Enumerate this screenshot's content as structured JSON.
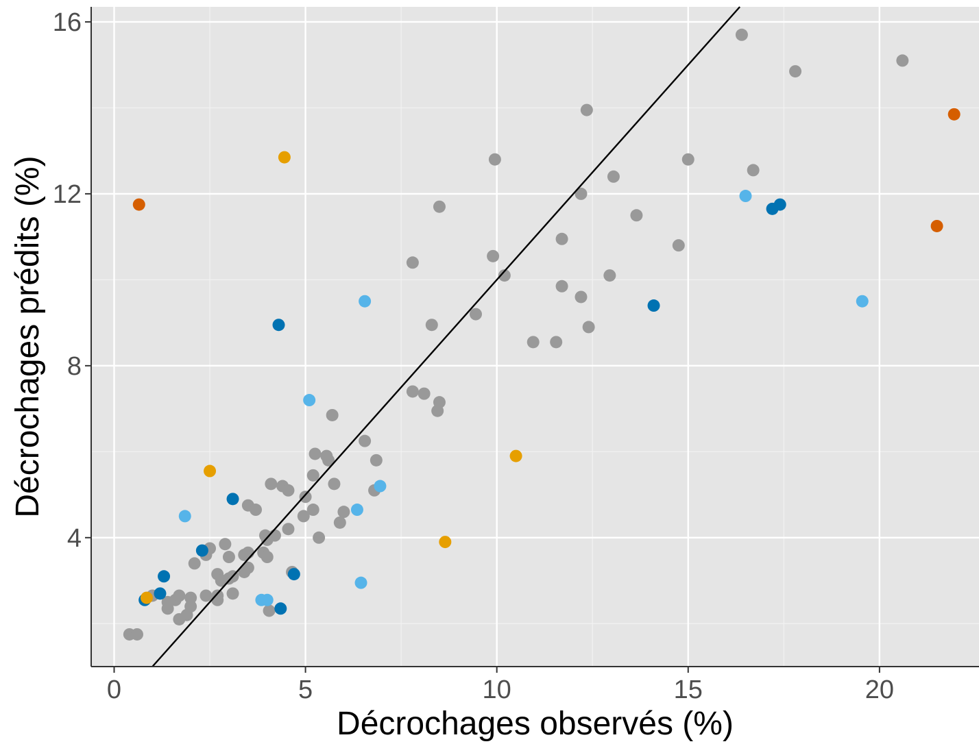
{
  "chart_data": {
    "type": "scatter",
    "title": "",
    "xlabel": "Décrochages observés (%)",
    "ylabel": "Décrochages prédits (%)",
    "xlim": [
      -0.6,
      22.6
    ],
    "ylim": [
      1.0,
      16.35
    ],
    "x_ticks": [
      0,
      5,
      10,
      15,
      20
    ],
    "y_ticks": [
      4,
      8,
      12,
      16
    ],
    "grid": true,
    "legend": "none",
    "reference_line": {
      "type": "identity",
      "color": "#000000"
    },
    "colors": {
      "gray": "#999999",
      "dark_blue": "#0072B2",
      "light_blue": "#56B4E9",
      "orange": "#E69F00",
      "vermillion": "#D55E00"
    },
    "series": [
      {
        "color": "gray",
        "points": [
          [
            0.4,
            1.75
          ],
          [
            0.6,
            1.75
          ],
          [
            1.0,
            2.65
          ],
          [
            1.4,
            2.35
          ],
          [
            1.4,
            2.5
          ],
          [
            1.6,
            2.55
          ],
          [
            1.7,
            2.65
          ],
          [
            1.7,
            2.1
          ],
          [
            1.9,
            2.2
          ],
          [
            2.0,
            2.4
          ],
          [
            2.0,
            2.6
          ],
          [
            2.1,
            3.4
          ],
          [
            2.4,
            2.65
          ],
          [
            2.4,
            3.6
          ],
          [
            2.5,
            3.75
          ],
          [
            2.7,
            2.65
          ],
          [
            2.7,
            2.55
          ],
          [
            2.7,
            3.15
          ],
          [
            2.8,
            3.0
          ],
          [
            2.9,
            3.85
          ],
          [
            3.0,
            3.55
          ],
          [
            3.0,
            3.05
          ],
          [
            3.1,
            3.1
          ],
          [
            3.1,
            2.7
          ],
          [
            3.4,
            3.2
          ],
          [
            3.4,
            3.6
          ],
          [
            3.5,
            3.3
          ],
          [
            3.5,
            3.65
          ],
          [
            3.5,
            4.75
          ],
          [
            3.7,
            4.65
          ],
          [
            3.9,
            3.65
          ],
          [
            3.95,
            4.05
          ],
          [
            4.0,
            3.55
          ],
          [
            4.0,
            3.95
          ],
          [
            4.05,
            2.3
          ],
          [
            4.1,
            5.25
          ],
          [
            4.2,
            4.05
          ],
          [
            4.4,
            5.2
          ],
          [
            4.55,
            5.1
          ],
          [
            4.55,
            4.2
          ],
          [
            4.65,
            3.2
          ],
          [
            4.95,
            4.5
          ],
          [
            5.0,
            4.95
          ],
          [
            5.2,
            4.65
          ],
          [
            5.2,
            5.45
          ],
          [
            5.25,
            5.95
          ],
          [
            5.35,
            4.0
          ],
          [
            5.55,
            5.9
          ],
          [
            5.6,
            5.8
          ],
          [
            5.7,
            6.85
          ],
          [
            5.75,
            5.25
          ],
          [
            5.9,
            4.35
          ],
          [
            6.0,
            4.6
          ],
          [
            6.55,
            6.25
          ],
          [
            6.8,
            5.1
          ],
          [
            6.85,
            5.8
          ],
          [
            7.8,
            7.4
          ],
          [
            7.8,
            10.4
          ],
          [
            8.1,
            7.35
          ],
          [
            8.3,
            8.95
          ],
          [
            8.45,
            6.95
          ],
          [
            8.5,
            7.15
          ],
          [
            8.5,
            11.7
          ],
          [
            9.45,
            9.2
          ],
          [
            9.9,
            10.55
          ],
          [
            9.95,
            12.8
          ],
          [
            10.2,
            10.1
          ],
          [
            10.95,
            8.55
          ],
          [
            11.55,
            8.55
          ],
          [
            11.7,
            10.95
          ],
          [
            11.7,
            9.85
          ],
          [
            12.2,
            9.6
          ],
          [
            12.2,
            12.0
          ],
          [
            12.35,
            13.95
          ],
          [
            12.4,
            8.9
          ],
          [
            12.95,
            10.1
          ],
          [
            13.05,
            12.4
          ],
          [
            13.65,
            11.5
          ],
          [
            14.75,
            10.8
          ],
          [
            15.0,
            12.8
          ],
          [
            16.4,
            15.7
          ],
          [
            16.7,
            12.55
          ],
          [
            17.8,
            14.85
          ],
          [
            20.6,
            15.1
          ]
        ]
      },
      {
        "color": "dark_blue",
        "points": [
          [
            0.8,
            2.55
          ],
          [
            1.2,
            2.7
          ],
          [
            1.3,
            3.1
          ],
          [
            2.3,
            3.7
          ],
          [
            3.1,
            4.9
          ],
          [
            4.3,
            8.95
          ],
          [
            4.35,
            2.35
          ],
          [
            4.7,
            3.15
          ],
          [
            14.1,
            9.4
          ],
          [
            17.2,
            11.65
          ],
          [
            17.4,
            11.75
          ]
        ]
      },
      {
        "color": "light_blue",
        "points": [
          [
            1.85,
            4.5
          ],
          [
            3.85,
            2.55
          ],
          [
            4.0,
            2.55
          ],
          [
            5.1,
            7.2
          ],
          [
            6.35,
            4.65
          ],
          [
            6.45,
            2.95
          ],
          [
            6.55,
            9.5
          ],
          [
            6.95,
            5.2
          ],
          [
            16.5,
            11.95
          ],
          [
            19.55,
            9.5
          ]
        ]
      },
      {
        "color": "orange",
        "points": [
          [
            0.85,
            2.6
          ],
          [
            2.5,
            5.55
          ],
          [
            4.45,
            12.85
          ],
          [
            8.65,
            3.9
          ],
          [
            10.5,
            5.9
          ]
        ]
      },
      {
        "color": "vermillion",
        "points": [
          [
            0.65,
            11.75
          ],
          [
            21.5,
            11.25
          ],
          [
            21.95,
            13.85
          ]
        ]
      }
    ]
  }
}
